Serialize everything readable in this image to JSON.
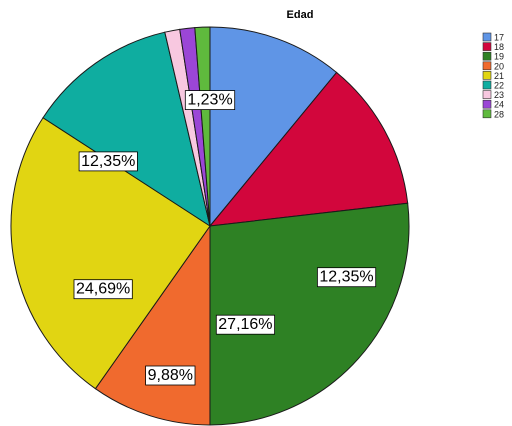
{
  "chart_data": {
    "type": "pie",
    "title": "Edad",
    "categories": [
      "17",
      "18",
      "19",
      "20",
      "21",
      "22",
      "23",
      "24",
      "28"
    ],
    "values": [
      11.11,
      12.35,
      27.16,
      9.88,
      24.69,
      12.35,
      1.23,
      1.23,
      1.23
    ],
    "data_labels": [
      "",
      "12,35%",
      "27,16%",
      "9,88%",
      "24,69%",
      "12,35%",
      "1,23%",
      "",
      ""
    ],
    "colors": [
      "#5f95e6",
      "#d2063c",
      "#2e8124",
      "#f06a2e",
      "#e1d512",
      "#0fada0",
      "#f8c8e0",
      "#9b46d6",
      "#5fba3d"
    ],
    "legend_position": "top-right",
    "start_angle_deg": 0,
    "direction": "clockwise"
  }
}
